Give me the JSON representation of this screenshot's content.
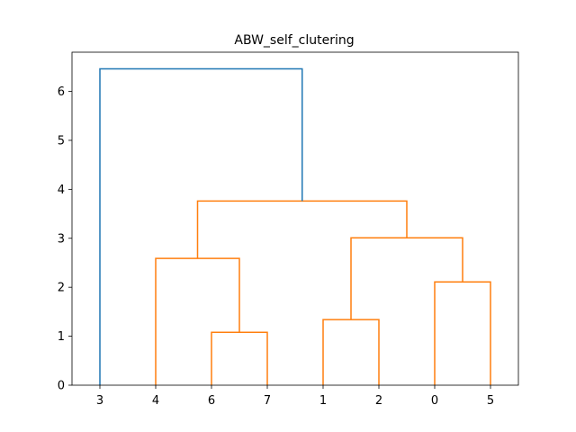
{
  "chart_data": {
    "type": "dendrogram",
    "title": "ABW_self_clutering",
    "xlabel": "",
    "ylabel": "",
    "leaf_order": [
      "3",
      "4",
      "6",
      "7",
      "1",
      "2",
      "0",
      "5"
    ],
    "ylim": [
      0,
      6.8
    ],
    "yticks": [
      0,
      1,
      2,
      3,
      4,
      5,
      6
    ],
    "merges": [
      {
        "children": [
          "6",
          "7"
        ],
        "height": 1.08,
        "color": "#ff7f0e"
      },
      {
        "children": [
          "1",
          "2"
        ],
        "height": 1.34,
        "color": "#ff7f0e"
      },
      {
        "children": [
          "0",
          "5"
        ],
        "height": 2.11,
        "color": "#ff7f0e"
      },
      {
        "children": [
          "4",
          "6+7"
        ],
        "height": 2.59,
        "color": "#ff7f0e"
      },
      {
        "children": [
          "1+2",
          "0+5"
        ],
        "height": 3.01,
        "color": "#ff7f0e"
      },
      {
        "children": [
          "4+6+7",
          "1+2+0+5"
        ],
        "height": 3.76,
        "color": "#ff7f0e"
      },
      {
        "children": [
          "3",
          "rest"
        ],
        "height": 6.46,
        "color": "#1f77b4"
      }
    ],
    "colors": {
      "cluster": "#ff7f0e",
      "above_threshold": "#1f77b4"
    }
  }
}
